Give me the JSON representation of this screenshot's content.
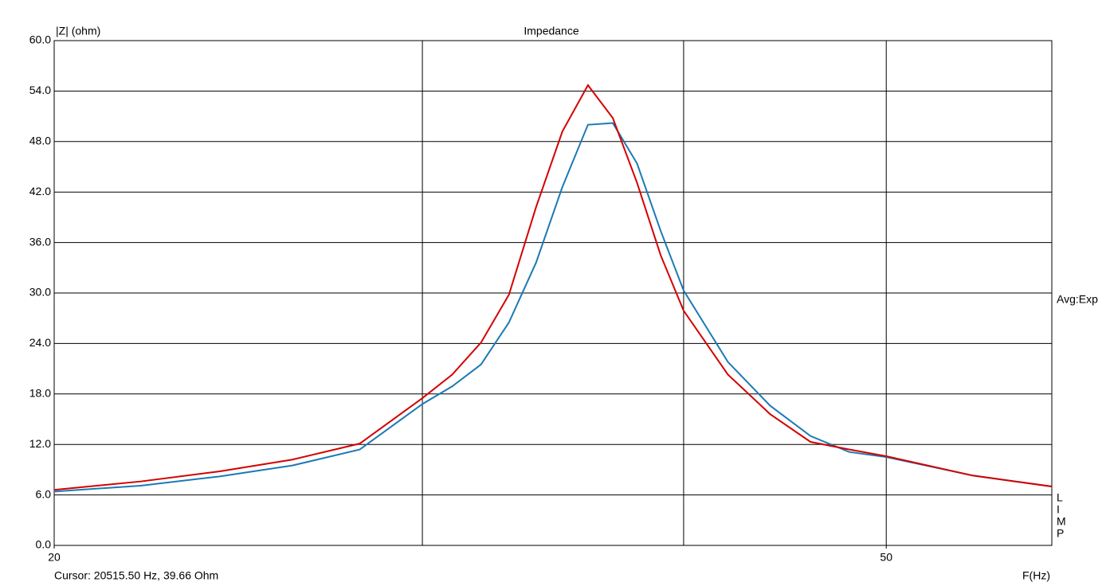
{
  "chart_data": {
    "type": "line",
    "title": "Impedance",
    "y_label": "|Z| (ohm)",
    "x_label": "F(Hz)",
    "cursor_text": "Cursor: 20515.50 Hz, 39.66 Ohm",
    "right_note": "Avg:Exp",
    "side_letters": [
      "L",
      "I",
      "M",
      "P"
    ],
    "x_scale": "log",
    "grid": true,
    "xlim": [
      20,
      60
    ],
    "xticks": [
      20,
      50
    ],
    "xgrid": [
      30,
      40,
      50
    ],
    "ylim": [
      0,
      60
    ],
    "yticks": [
      {
        "value": 0,
        "label": "0.0"
      },
      {
        "value": 6,
        "label": "6.0"
      },
      {
        "value": 12,
        "label": "12.0"
      },
      {
        "value": 18,
        "label": "18.0"
      },
      {
        "value": 24,
        "label": "24.0"
      },
      {
        "value": 30,
        "label": "30.0"
      },
      {
        "value": 36,
        "label": "36.0"
      },
      {
        "value": 42,
        "label": "42.0"
      },
      {
        "value": 48,
        "label": "48.0"
      },
      {
        "value": 54,
        "label": "54.0"
      },
      {
        "value": 60,
        "label": "60.0"
      }
    ],
    "x": [
      20,
      22,
      24,
      26,
      28,
      30,
      31,
      32,
      33,
      34,
      35,
      36,
      37,
      38,
      39,
      40,
      42,
      44,
      46,
      48,
      50,
      55,
      60
    ],
    "series": [
      {
        "color": "#1a7ab5",
        "values": [
          6.4,
          7.1,
          8.2,
          9.5,
          11.4,
          16.8,
          18.9,
          21.5,
          26.5,
          33.6,
          42.6,
          50.0,
          50.2,
          45.4,
          37.4,
          30.3,
          21.8,
          16.6,
          13.0,
          11.1,
          10.5,
          8.3,
          7.0
        ]
      },
      {
        "color": "#d40000",
        "values": [
          6.6,
          7.6,
          8.8,
          10.2,
          12.1,
          17.5,
          20.3,
          24.1,
          29.8,
          40.2,
          49.2,
          54.7,
          50.8,
          43.1,
          34.5,
          27.9,
          20.3,
          15.6,
          12.3,
          11.4,
          10.6,
          8.3,
          7.0
        ]
      }
    ]
  }
}
